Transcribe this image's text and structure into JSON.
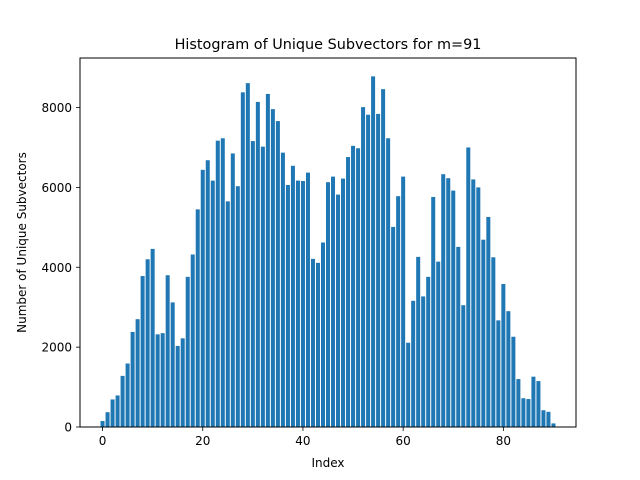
{
  "chart_data": {
    "type": "bar",
    "title": "Histogram of Unique Subvectors for m=91",
    "xlabel": "Index",
    "ylabel": "Number of Unique Subvectors",
    "xlim": [
      -4.5,
      94.5
    ],
    "ylim": [
      0,
      9240
    ],
    "xticks": [
      0,
      20,
      40,
      60,
      80
    ],
    "yticks": [
      0,
      2000,
      4000,
      6000,
      8000
    ],
    "grid": false,
    "bar_color": "#1f77b4",
    "x": [
      0,
      1,
      2,
      3,
      4,
      5,
      6,
      7,
      8,
      9,
      10,
      11,
      12,
      13,
      14,
      15,
      16,
      17,
      18,
      19,
      20,
      21,
      22,
      23,
      24,
      25,
      26,
      27,
      28,
      29,
      30,
      31,
      32,
      33,
      34,
      35,
      36,
      37,
      38,
      39,
      40,
      41,
      42,
      43,
      44,
      45,
      46,
      47,
      48,
      49,
      50,
      51,
      52,
      53,
      54,
      55,
      56,
      57,
      58,
      59,
      60,
      61,
      62,
      63,
      64,
      65,
      66,
      67,
      68,
      69,
      70,
      71,
      72,
      73,
      74,
      75,
      76,
      77,
      78,
      79,
      80,
      81,
      82,
      83,
      84,
      85,
      86,
      87,
      88,
      89,
      90
    ],
    "values": [
      150,
      370,
      690,
      790,
      1280,
      1590,
      2380,
      2700,
      3780,
      4200,
      4460,
      2320,
      2350,
      3800,
      3120,
      2030,
      2220,
      3760,
      4320,
      5450,
      6440,
      6680,
      6170,
      7170,
      7230,
      5650,
      6850,
      6030,
      8380,
      8610,
      7160,
      8140,
      7020,
      8340,
      7960,
      7660,
      6870,
      6060,
      6540,
      6170,
      6160,
      6370,
      4210,
      4110,
      4620,
      6130,
      6270,
      5820,
      6220,
      6760,
      7040,
      6980,
      8010,
      7820,
      8780,
      7840,
      8460,
      7230,
      5010,
      5780,
      6270,
      2110,
      3160,
      4260,
      3270,
      3760,
      5760,
      4140,
      6330,
      6230,
      5920,
      4510,
      3050,
      7000,
      6200,
      6000,
      4690,
      5260,
      4250,
      2670,
      3580,
      2900,
      2260,
      1200,
      720,
      700,
      1260,
      1150,
      420,
      380,
      90
    ]
  }
}
